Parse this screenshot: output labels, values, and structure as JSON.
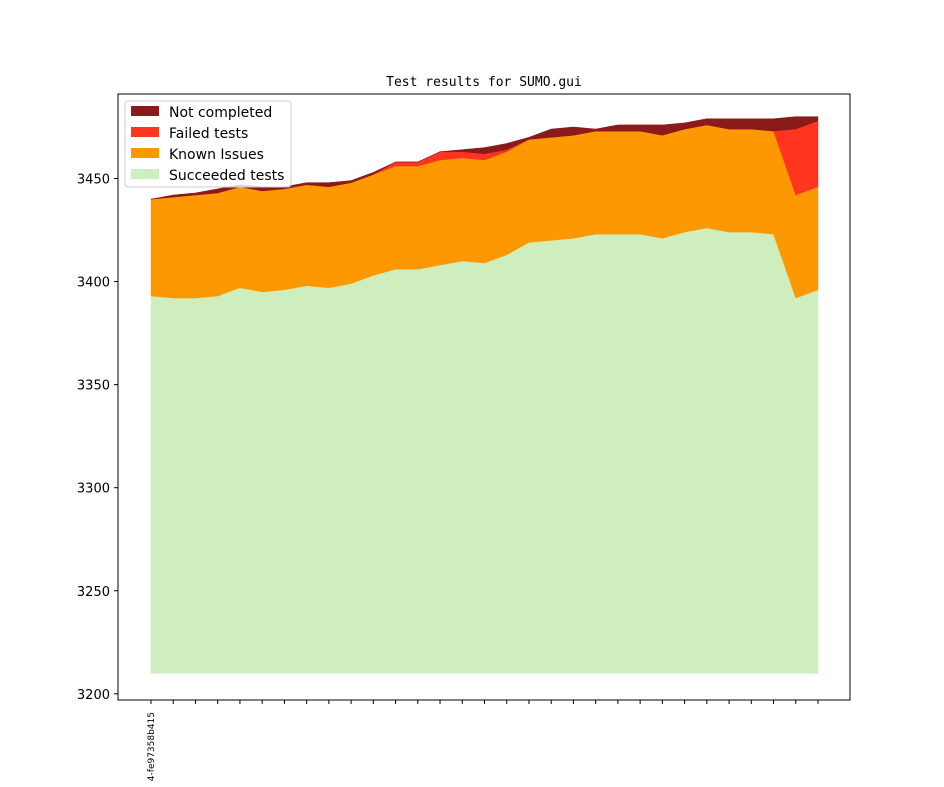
{
  "chart_data": {
    "type": "area",
    "title": "Test results for SUMO.gui",
    "xlabel": "",
    "ylabel": "",
    "ylim": [
      3197,
      3491
    ],
    "yticks": [
      3200,
      3250,
      3300,
      3350,
      3400,
      3450
    ],
    "baseline": 3210,
    "x_tick_labels": [
      "4-fe97358b415"
    ],
    "legend_position": "top-left",
    "grid": false,
    "series_order_note": "",
    "series": [
      {
        "name": "Succeeded tests",
        "color": "#cfeebe",
        "values": [
          3393,
          3392,
          3392,
          3393,
          3397,
          3395,
          3396,
          3398,
          3397,
          3399,
          3403,
          3406,
          3406,
          3408,
          3410,
          3409,
          3413,
          3419,
          3420,
          3421,
          3423,
          3423,
          3423,
          3421,
          3424,
          3426,
          3424,
          3424,
          3423,
          3392,
          3396
        ]
      },
      {
        "name": "Known Issues",
        "color": "#fd9800",
        "values": [
          47,
          49,
          50,
          50,
          49,
          49,
          49,
          49,
          49,
          49,
          49,
          50,
          50,
          51,
          50,
          50,
          50,
          50,
          50,
          50,
          50,
          50,
          50,
          50,
          50,
          50,
          50,
          50,
          50,
          50,
          50
        ]
      },
      {
        "name": "Failed tests",
        "color": "#ff3520",
        "values": [
          0,
          0,
          0,
          0,
          0,
          0,
          0,
          0,
          0,
          0,
          0,
          2,
          2,
          4,
          3,
          3,
          1,
          0,
          0,
          0,
          0,
          0,
          0,
          0,
          0,
          0,
          0,
          0,
          0,
          32,
          32
        ]
      },
      {
        "name": "Not completed",
        "color": "#8b1a1a",
        "values": [
          0,
          1,
          1,
          2,
          1,
          2,
          1,
          1,
          2,
          1,
          1,
          0,
          0,
          0,
          1,
          3,
          3,
          1,
          4,
          4,
          1,
          3,
          3,
          5,
          3,
          3,
          5,
          5,
          6,
          6,
          2
        ]
      }
    ]
  }
}
